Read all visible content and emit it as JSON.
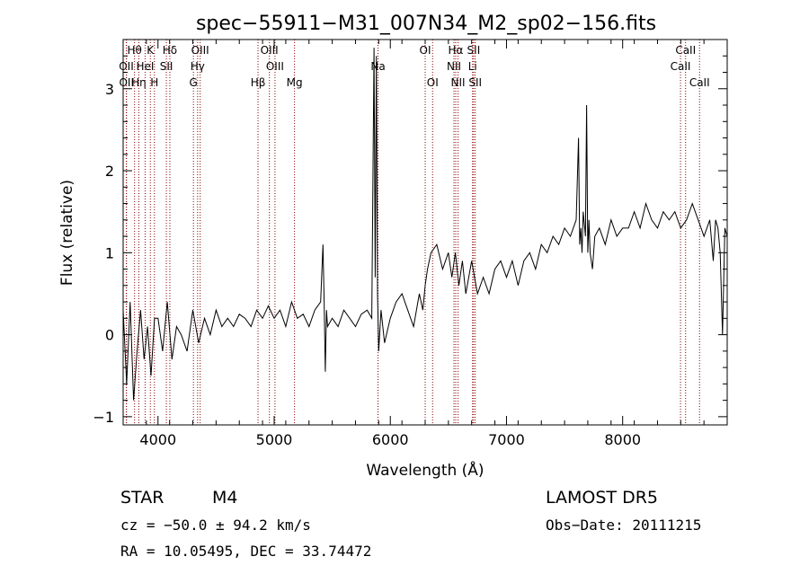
{
  "chart_data": {
    "type": "line",
    "title": "spec−55911−M31_007N34_M2_sp02−156.fits",
    "xlabel": "Wavelength (Å)",
    "ylabel": "Flux (relative)",
    "xlim": [
      3700,
      8900
    ],
    "ylim": [
      -1.1,
      3.6
    ],
    "x_ticks": [
      {
        "value": 4000,
        "label": "4000"
      },
      {
        "value": 5000,
        "label": "5000"
      },
      {
        "value": 6000,
        "label": "6000"
      },
      {
        "value": 7000,
        "label": "7000"
      },
      {
        "value": 8000,
        "label": "8000"
      }
    ],
    "y_ticks": [
      {
        "value": -1,
        "label": "−1"
      },
      {
        "value": 0,
        "label": "0"
      },
      {
        "value": 1,
        "label": "1"
      },
      {
        "value": 2,
        "label": "2"
      },
      {
        "value": 3,
        "label": "3"
      }
    ],
    "grid": false,
    "line_color": "#000000",
    "marker_color": "#8b0000",
    "series": [
      {
        "x": [
          3700,
          3730,
          3760,
          3790,
          3820,
          3850,
          3880,
          3910,
          3940,
          3970,
          4000,
          4040,
          4080,
          4120,
          4160,
          4200,
          4250,
          4300,
          4350,
          4400,
          4450,
          4500,
          4550,
          4600,
          4650,
          4700,
          4750,
          4800,
          4850,
          4900,
          4950,
          5000,
          5050,
          5100,
          5150,
          5200,
          5250,
          5300,
          5350,
          5400,
          5420,
          5430,
          5440,
          5450,
          5460,
          5500,
          5550,
          5600,
          5650,
          5700,
          5750,
          5800,
          5840,
          5860,
          5870,
          5880,
          5890,
          5900,
          5920,
          5950,
          6000,
          6050,
          6100,
          6150,
          6200,
          6250,
          6280,
          6300,
          6320,
          6350,
          6400,
          6450,
          6500,
          6530,
          6560,
          6590,
          6620,
          6650,
          6700,
          6750,
          6800,
          6850,
          6900,
          6950,
          7000,
          7050,
          7100,
          7150,
          7200,
          7250,
          7300,
          7350,
          7400,
          7450,
          7500,
          7550,
          7600,
          7620,
          7630,
          7640,
          7650,
          7660,
          7680,
          7690,
          7700,
          7710,
          7720,
          7740,
          7760,
          7800,
          7850,
          7900,
          7950,
          8000,
          8050,
          8100,
          8150,
          8200,
          8250,
          8300,
          8350,
          8400,
          8450,
          8500,
          8550,
          8600,
          8650,
          8700,
          8750,
          8780,
          8800,
          8820,
          8840,
          8860,
          8880,
          8900
        ],
        "y": [
          0.3,
          -0.6,
          0.4,
          -0.8,
          -0.2,
          0.3,
          -0.3,
          0.1,
          -0.5,
          0.2,
          0.2,
          -0.2,
          0.4,
          -0.3,
          0.1,
          0.0,
          -0.2,
          0.3,
          -0.1,
          0.2,
          0.0,
          0.3,
          0.1,
          0.2,
          0.1,
          0.25,
          0.2,
          0.1,
          0.3,
          0.2,
          0.35,
          0.2,
          0.3,
          0.1,
          0.4,
          0.2,
          0.25,
          0.1,
          0.3,
          0.4,
          1.1,
          0.4,
          -0.45,
          0.3,
          0.1,
          0.2,
          0.1,
          0.3,
          0.2,
          0.1,
          0.25,
          0.3,
          0.2,
          3.5,
          0.7,
          3.4,
          0.5,
          -0.2,
          0.3,
          -0.1,
          0.2,
          0.4,
          0.5,
          0.3,
          0.1,
          0.5,
          0.3,
          0.6,
          0.8,
          1.0,
          1.1,
          0.8,
          1.0,
          0.7,
          1.0,
          0.6,
          0.9,
          0.5,
          0.9,
          0.5,
          0.7,
          0.5,
          0.8,
          0.9,
          0.7,
          0.9,
          0.6,
          0.9,
          1.0,
          0.8,
          1.1,
          1.0,
          1.2,
          1.1,
          1.3,
          1.2,
          1.4,
          2.4,
          1.1,
          1.3,
          1.0,
          1.5,
          1.2,
          2.8,
          1.0,
          1.4,
          1.0,
          0.8,
          1.2,
          1.3,
          1.1,
          1.4,
          1.2,
          1.3,
          1.3,
          1.5,
          1.3,
          1.6,
          1.4,
          1.3,
          1.5,
          1.4,
          1.5,
          1.3,
          1.4,
          1.6,
          1.4,
          1.2,
          1.4,
          0.9,
          1.4,
          1.3,
          1.0,
          0.0,
          1.3,
          1.2
        ]
      }
    ],
    "line_markers": [
      {
        "label": "Hθ",
        "x": 3798,
        "row": 0
      },
      {
        "label": "OII",
        "x": 3727,
        "row": 1
      },
      {
        "label": "OII",
        "x": 3729,
        "row": 2
      },
      {
        "label": "Hη",
        "x": 3835,
        "row": 2
      },
      {
        "label": "HeI",
        "x": 3889,
        "row": 1
      },
      {
        "label": "K",
        "x": 3934,
        "row": 0
      },
      {
        "label": "H",
        "x": 3969,
        "row": 2
      },
      {
        "label": "Hδ",
        "x": 4102,
        "row": 0
      },
      {
        "label": "SII",
        "x": 4072,
        "row": 1
      },
      {
        "label": "OIII",
        "x": 4363,
        "row": 0
      },
      {
        "label": "Hγ",
        "x": 4341,
        "row": 1
      },
      {
        "label": "G",
        "x": 4305,
        "row": 2
      },
      {
        "label": "OIII",
        "x": 4959,
        "row": 0
      },
      {
        "label": "OIII",
        "x": 5007,
        "row": 1
      },
      {
        "label": "Hβ",
        "x": 4861,
        "row": 2
      },
      {
        "label": "Mg",
        "x": 5175,
        "row": 2
      },
      {
        "label": "Na",
        "x": 5894,
        "row": 1
      },
      {
        "label": "OI",
        "x": 6300,
        "row": 0
      },
      {
        "label": "OI",
        "x": 6364,
        "row": 2
      },
      {
        "label": "Hα",
        "x": 6563,
        "row": 0
      },
      {
        "label": "NII",
        "x": 6548,
        "row": 1
      },
      {
        "label": "NII",
        "x": 6583,
        "row": 2
      },
      {
        "label": "SII",
        "x": 6717,
        "row": 0
      },
      {
        "label": "Li",
        "x": 6708,
        "row": 1
      },
      {
        "label": "SII",
        "x": 6731,
        "row": 2
      },
      {
        "label": "CaII",
        "x": 8542,
        "row": 0
      },
      {
        "label": "CaII",
        "x": 8498,
        "row": 1
      },
      {
        "label": "CaII",
        "x": 8662,
        "row": 2
      }
    ]
  },
  "info": {
    "object_class": "STAR",
    "subclass": "M4",
    "survey": "LAMOST DR5",
    "cz": "cz = −50.0 ± 94.2 km/s",
    "obs_date": "Obs−Date: 20111215",
    "coords": "RA =  10.05495, DEC =  33.74472"
  }
}
